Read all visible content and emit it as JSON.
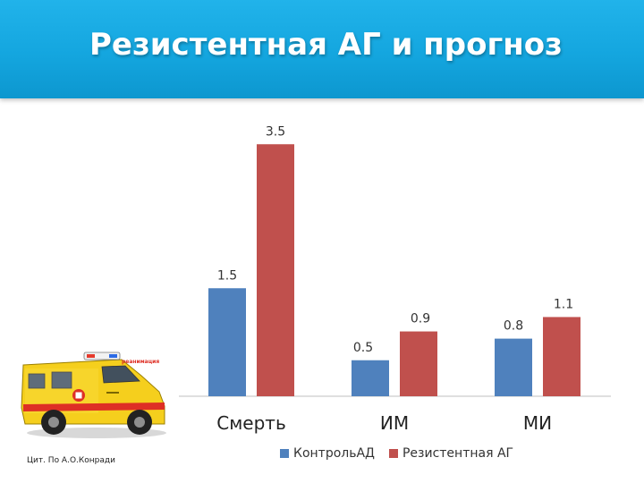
{
  "title": "Резистентная АГ и прогноз",
  "source": "Цит. По А.О.Конради",
  "colors": {
    "header": "#14a6df",
    "series1": "#4f81bd",
    "series2": "#c0504d"
  },
  "chart_data": {
    "type": "bar",
    "categories": [
      "Смерть",
      "ИМ",
      "МИ"
    ],
    "series": [
      {
        "name": "КонтрольАД",
        "color": "#4f81bd",
        "values": [
          1.5,
          0.5,
          0.8
        ],
        "labels": [
          "1.5",
          "0.5",
          "0.8"
        ]
      },
      {
        "name": "Резистентная АГ",
        "color": "#c0504d",
        "values": [
          3.5,
          0.9,
          1.1
        ],
        "labels": [
          "3.5",
          "0.9",
          "1.1"
        ]
      }
    ],
    "ylim": [
      0,
      4
    ],
    "grid": false,
    "legend": "bottom"
  },
  "illustration": {
    "name": "ambulance",
    "text": "реанимация"
  }
}
